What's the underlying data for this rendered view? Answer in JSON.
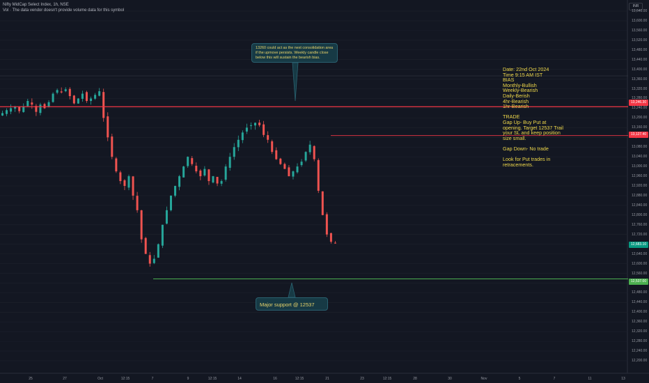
{
  "header": {
    "symbol_line": "Nifty MidCap Select Index, 1h, NSE",
    "volume_note": "Vol · The data vendor doesn't provide volume data for this symbol"
  },
  "currency": "INR",
  "annotations": {
    "callout_top": "13260 could act as the next consolidation area\nif the upmove persists. Weekly candle close\nbelow this will sustain the bearish bias.",
    "callout_bottom": "Major support @ 12537",
    "note": "Date: 22nd Oct 2024\nTime 9:15 AM IST\nBIAS\nMonthly-Bullish\nWeekly-Bearish\nDaily-Berish\n4hr-Bearish\n1hr-Bearish\n\nTRADE\nGap Up- Buy Put at\nopening.  Target 12537 Trail\nyour SL and keep position\nsize small.\n\nGap Down- No trade\n\nLook for Put trades in\nretracements."
  },
  "price_labels": {
    "upper": "13,246.30",
    "middle": "13,127.40",
    "last": "12,683.10",
    "support": "12,537.00"
  },
  "y_ticks": [
    "13,640.00",
    "13,600.00",
    "13,560.00",
    "13,520.00",
    "13,480.00",
    "13,440.00",
    "13,400.00",
    "13,360.00",
    "13,320.00",
    "13,280.00",
    "13,240.00",
    "13,200.00",
    "13,160.00",
    "13,120.00",
    "13,080.00",
    "13,040.00",
    "13,000.00",
    "12,960.00",
    "12,920.00",
    "12,880.00",
    "12,840.00",
    "12,800.00",
    "12,760.00",
    "12,720.00",
    "12,680.00",
    "12,640.00",
    "12,600.00",
    "12,560.00",
    "12,520.00",
    "12,480.00",
    "12,440.00",
    "12,400.00",
    "12,360.00",
    "12,320.00",
    "12,280.00",
    "12,240.00",
    "12,200.00"
  ],
  "x_ticks": [
    "25",
    "27",
    "Oct",
    "12:15",
    "7",
    "9",
    "12:15",
    "14",
    "16",
    "12:15",
    "21",
    "23",
    "12:15",
    "28",
    "30",
    "Nov",
    "5",
    "7",
    "11",
    "13"
  ],
  "colors": {
    "up": "#26a69a",
    "down": "#ef5350",
    "resistance": "#f23645",
    "support": "#4caf50",
    "grid": "#1e222d"
  },
  "chart_data": {
    "type": "candlestick",
    "ylim": [
      12180,
      13660
    ],
    "levels": [
      {
        "label": "13,246.30",
        "value": 13246.3
      },
      {
        "label": "13,127.40",
        "value": 13127.4
      },
      {
        "label": "12,537.00",
        "value": 12537
      }
    ],
    "last_price": 12683.1,
    "close_path": [
      13220,
      13232,
      13240,
      13245,
      13228,
      13248,
      13270,
      13255,
      13225,
      13255,
      13240,
      13265,
      13300,
      13315,
      13305,
      13318,
      13290,
      13260,
      13280,
      13300,
      13270,
      13280,
      13295,
      13310,
      13200,
      13120,
      13040,
      12980,
      12940,
      12920,
      12960,
      12880,
      12820,
      12700,
      12640,
      12600,
      12620,
      12680,
      12760,
      12820,
      12880,
      12920,
      12960,
      13000,
      13040,
      13010,
      12980,
      12960,
      12990,
      12940,
      12960,
      12930,
      12940,
      13000,
      13040,
      13080,
      13110,
      13140,
      13160,
      13170,
      13180,
      13170,
      13130,
      13110,
      13060,
      13030,
      13010,
      12990,
      12960,
      12980,
      13000,
      13020,
      13060,
      13090,
      13030,
      12900,
      12800,
      12720,
      12690,
      12683
    ]
  }
}
